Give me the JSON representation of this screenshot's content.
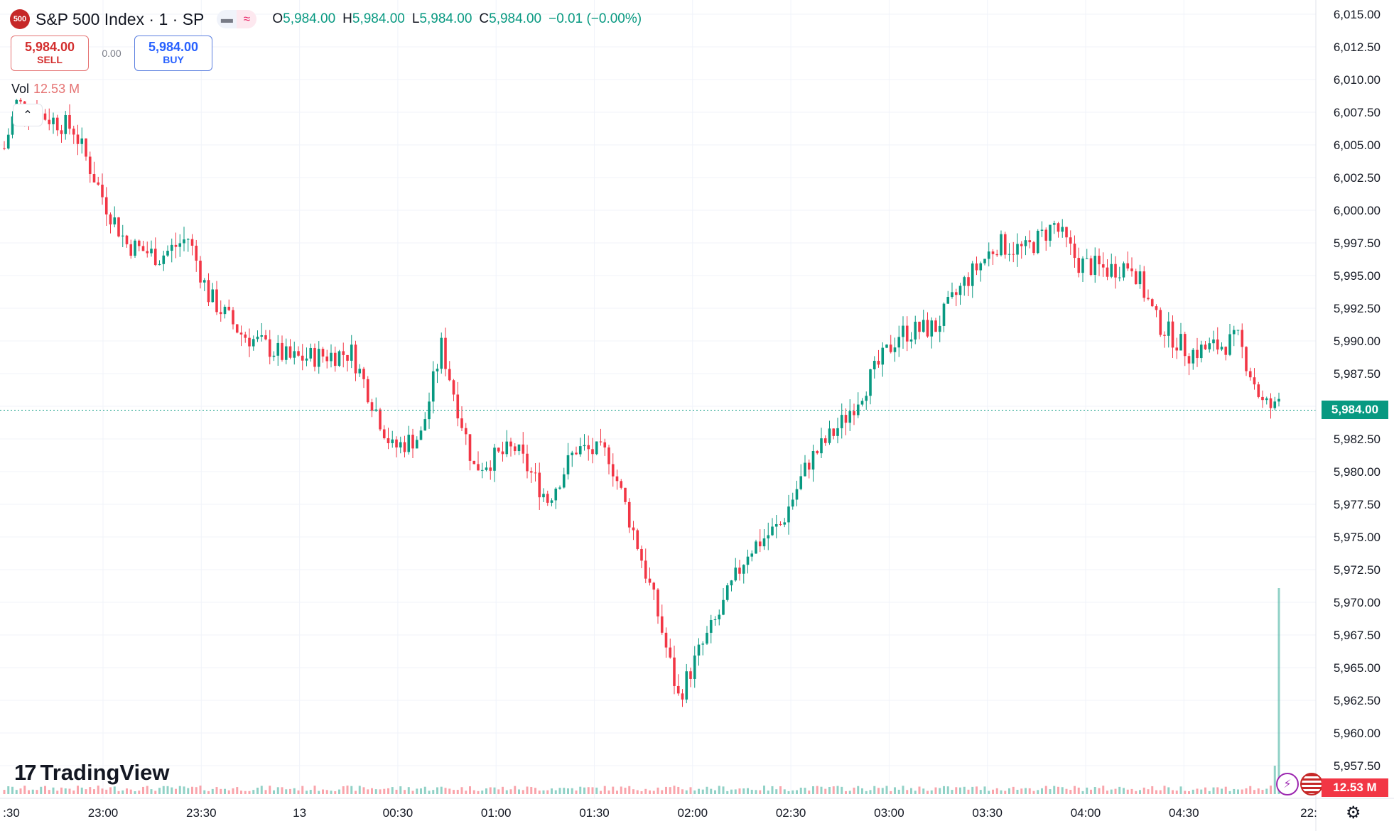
{
  "header": {
    "symbol_badge": "500",
    "title": "S&P 500 Index · 1 · SP",
    "ohlc": [
      {
        "key": "O",
        "value": "5,984.00"
      },
      {
        "key": "H",
        "value": "5,984.00"
      },
      {
        "key": "L",
        "value": "5,984.00"
      },
      {
        "key": "C",
        "value": "5,984.00"
      }
    ],
    "change": "−0.01 (−0.00%)"
  },
  "trade": {
    "sell_price": "5,984.00",
    "sell_label": "SELL",
    "spread": "0.00",
    "buy_price": "5,984.00",
    "buy_label": "BUY"
  },
  "volume_legend": {
    "label": "Vol",
    "value": "12.53 M"
  },
  "logo_text": "TradingView",
  "price_tag": "5,984.00",
  "volume_tag": "12.53 M",
  "colors": {
    "up": "#089981",
    "down": "#f23645",
    "grid": "#f0f3fa",
    "text": "#131722"
  },
  "chart_data": {
    "type": "candlestick",
    "y_axis_labels": [
      "6,015.00",
      "6,012.50",
      "6,010.00",
      "6,007.50",
      "6,005.00",
      "6,002.50",
      "6,000.00",
      "5,997.50",
      "5,995.00",
      "5,992.50",
      "5,990.00",
      "5,987.50",
      "5,985.00",
      "5,982.50",
      "5,980.00",
      "5,977.50",
      "5,975.00",
      "5,972.50",
      "5,970.00",
      "5,967.50",
      "5,965.00",
      "5,962.50",
      "5,960.00",
      "5,957.50"
    ],
    "x_axis_labels": [
      ":30",
      "23:00",
      "23:30",
      "13",
      "00:30",
      "01:00",
      "01:30",
      "02:00",
      "02:30",
      "03:00",
      "03:30",
      "04:00",
      "04:30",
      "22:"
    ],
    "ylim": [
      5956,
      6016
    ],
    "last_price": 5984.0,
    "close_path": [
      {
        "t": 0,
        "price": 6004.5
      },
      {
        "t": 3,
        "price": 6008.0
      },
      {
        "t": 10,
        "price": 6007.0
      },
      {
        "t": 17,
        "price": 6006.0
      },
      {
        "t": 25,
        "price": 6000.0
      },
      {
        "t": 30,
        "price": 5997.0
      },
      {
        "t": 38,
        "price": 5996.0
      },
      {
        "t": 45,
        "price": 5997.5
      },
      {
        "t": 50,
        "price": 5993.0
      },
      {
        "t": 58,
        "price": 5990.0
      },
      {
        "t": 70,
        "price": 5988.0
      },
      {
        "t": 85,
        "price": 5988.5
      },
      {
        "t": 95,
        "price": 5981.0
      },
      {
        "t": 102,
        "price": 5982.0
      },
      {
        "t": 107,
        "price": 5989.0
      },
      {
        "t": 115,
        "price": 5979.5
      },
      {
        "t": 125,
        "price": 5981.0
      },
      {
        "t": 133,
        "price": 5977.0
      },
      {
        "t": 140,
        "price": 5981.0
      },
      {
        "t": 148,
        "price": 5980.5
      },
      {
        "t": 155,
        "price": 5973.5
      },
      {
        "t": 160,
        "price": 5968.0
      },
      {
        "t": 165,
        "price": 5961.5
      },
      {
        "t": 170,
        "price": 5965.0
      },
      {
        "t": 175,
        "price": 5968.0
      },
      {
        "t": 182,
        "price": 5973.0
      },
      {
        "t": 190,
        "price": 5975.0
      },
      {
        "t": 197,
        "price": 5980.0
      },
      {
        "t": 205,
        "price": 5983.0
      },
      {
        "t": 212,
        "price": 5986.5
      },
      {
        "t": 219,
        "price": 5990.0
      },
      {
        "t": 228,
        "price": 5990.5
      },
      {
        "t": 235,
        "price": 5994.0
      },
      {
        "t": 243,
        "price": 5997.0
      },
      {
        "t": 250,
        "price": 5996.5
      },
      {
        "t": 257,
        "price": 5998.5
      },
      {
        "t": 263,
        "price": 5995.5
      },
      {
        "t": 270,
        "price": 5995.0
      },
      {
        "t": 276,
        "price": 5995.5
      },
      {
        "t": 282,
        "price": 5991.0
      },
      {
        "t": 290,
        "price": 5988.5
      },
      {
        "t": 297,
        "price": 5989.0
      },
      {
        "t": 302,
        "price": 5989.5
      },
      {
        "t": 308,
        "price": 5984.5
      },
      {
        "t": 312,
        "price": 5984.0
      }
    ]
  }
}
